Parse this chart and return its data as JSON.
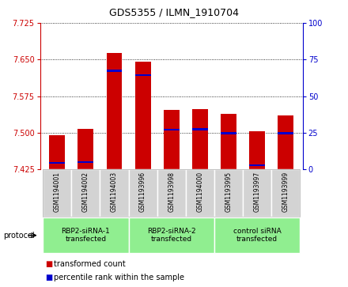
{
  "title": "GDS5355 / ILMN_1910704",
  "samples": [
    "GSM1194001",
    "GSM1194002",
    "GSM1194003",
    "GSM1193996",
    "GSM1193998",
    "GSM1194000",
    "GSM1193995",
    "GSM1193997",
    "GSM1193999"
  ],
  "bar_values": [
    7.495,
    7.508,
    7.663,
    7.645,
    7.547,
    7.548,
    7.538,
    7.503,
    7.535
  ],
  "percentile_values": [
    7.438,
    7.44,
    7.627,
    7.618,
    7.506,
    7.507,
    7.499,
    7.433,
    7.499
  ],
  "ymin": 7.425,
  "ymax": 7.725,
  "yticks": [
    7.425,
    7.5,
    7.575,
    7.65,
    7.725
  ],
  "y2ticks": [
    0,
    25,
    50,
    75,
    100
  ],
  "bar_color": "#cc0000",
  "percentile_color": "#0000cc",
  "bar_width": 0.55,
  "groups": [
    {
      "label": "RBP2-siRNA-1\ntransfected",
      "start": 0,
      "end": 3,
      "color": "#90ee90"
    },
    {
      "label": "RBP2-siRNA-2\ntransfected",
      "start": 3,
      "end": 6,
      "color": "#90ee90"
    },
    {
      "label": "control siRNA\ntransfected",
      "start": 6,
      "end": 9,
      "color": "#90ee90"
    }
  ],
  "protocol_label": "protocol",
  "legend_items": [
    {
      "color": "#cc0000",
      "label": "transformed count"
    },
    {
      "color": "#0000cc",
      "label": "percentile rank within the sample"
    }
  ],
  "background_color": "#ffffff",
  "plot_bg_color": "#ffffff",
  "tick_color_left": "#cc0000",
  "tick_color_right": "#0000cc",
  "grid_color": "#000000",
  "sample_bg_color": "#d3d3d3",
  "title_fontsize": 9
}
